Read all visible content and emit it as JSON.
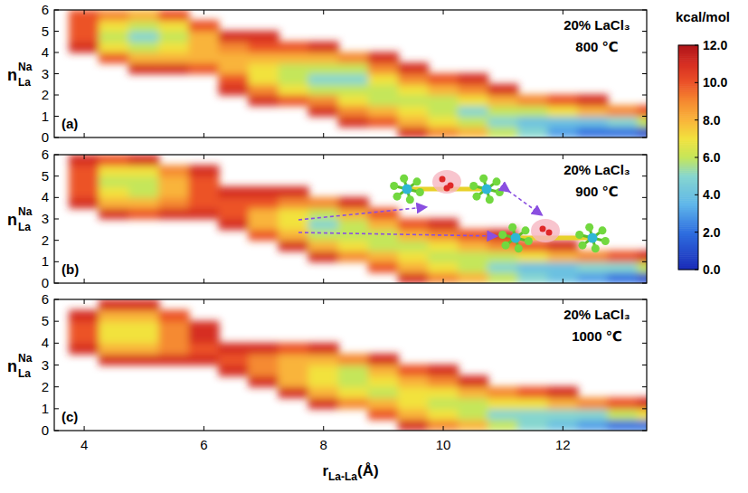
{
  "chart_data": [
    {
      "type": "heatmap",
      "panel_label": "(a)",
      "annotations": [
        "20% LaCl₃",
        "800 ℃"
      ],
      "x": [
        4,
        4.5,
        5,
        5.5,
        6,
        6.5,
        7,
        7.5,
        8,
        8.5,
        9,
        9.5,
        10,
        10.5,
        11,
        11.5,
        12,
        12.5,
        13,
        13.5
      ],
      "y": [
        0.25,
        0.75,
        1.25,
        1.75,
        2.25,
        2.75,
        3.25,
        3.75,
        4.25,
        4.75,
        5.25,
        5.75
      ],
      "cells": [
        [
          null,
          null,
          null,
          null,
          null,
          null,
          null,
          null,
          null,
          null,
          null,
          11,
          9,
          8,
          6,
          5,
          3,
          2,
          2,
          1
        ],
        [
          null,
          null,
          null,
          null,
          null,
          null,
          null,
          null,
          null,
          11,
          10,
          8,
          7,
          6,
          5,
          4,
          4,
          4,
          5,
          6
        ],
        [
          null,
          null,
          null,
          null,
          null,
          null,
          null,
          null,
          11,
          9,
          8,
          7,
          6,
          5,
          6,
          6,
          7,
          8,
          9,
          10
        ],
        [
          null,
          null,
          null,
          null,
          null,
          null,
          11,
          10,
          9,
          7,
          6,
          6,
          6,
          7,
          8,
          9,
          10,
          11,
          null,
          null
        ],
        [
          null,
          null,
          null,
          null,
          null,
          11,
          9,
          7,
          6,
          6,
          6,
          7,
          8,
          9,
          11,
          null,
          null,
          null,
          null,
          null
        ],
        [
          null,
          null,
          null,
          null,
          null,
          10,
          7,
          6,
          5,
          5,
          7,
          9,
          10,
          11,
          null,
          null,
          null,
          null,
          null,
          null
        ],
        [
          null,
          null,
          11,
          11,
          10,
          8,
          7,
          6,
          6,
          6,
          9,
          11,
          null,
          null,
          null,
          null,
          null,
          null,
          null,
          null
        ],
        [
          null,
          10,
          8,
          8,
          8,
          8,
          8,
          8,
          8,
          9,
          11,
          null,
          null,
          null,
          null,
          null,
          null,
          null,
          null,
          null
        ],
        [
          11,
          7,
          6,
          7,
          8,
          9,
          10,
          10,
          11,
          null,
          null,
          null,
          null,
          null,
          null,
          null,
          null,
          null,
          null,
          null
        ],
        [
          10,
          6,
          5,
          6,
          8,
          11,
          11,
          null,
          null,
          null,
          null,
          null,
          null,
          null,
          null,
          null,
          null,
          null,
          null,
          null
        ],
        [
          10,
          7,
          6,
          7,
          10,
          null,
          null,
          null,
          null,
          null,
          null,
          null,
          null,
          null,
          null,
          null,
          null,
          null,
          null,
          null
        ],
        [
          10,
          9,
          8,
          10,
          null,
          null,
          null,
          null,
          null,
          null,
          null,
          null,
          null,
          null,
          null,
          null,
          null,
          null,
          null,
          null
        ]
      ],
      "xlim": [
        3.5,
        13.4
      ],
      "ylim": [
        0,
        6
      ],
      "xticks": [
        4,
        6,
        8,
        10,
        12
      ],
      "yticks": [
        0,
        1,
        2,
        3,
        4,
        5,
        6
      ],
      "tick_labels": "y",
      "ylabel": {
        "main": "n",
        "sup": "Na",
        "sub": "La"
      },
      "colorbar": {
        "label": "kcal/mol",
        "range": [
          0,
          12
        ],
        "ticks": [
          {
            "value": 0,
            "label": "0.0"
          },
          {
            "value": 2,
            "label": "2.0"
          },
          {
            "value": 4,
            "label": "4.0"
          },
          {
            "value": 6,
            "label": "6.0"
          },
          {
            "value": 8,
            "label": "8.0"
          },
          {
            "value": 10,
            "label": "10.0"
          },
          {
            "value": 12,
            "label": "12.0"
          }
        ]
      }
    },
    {
      "type": "heatmap",
      "panel_label": "(b)",
      "annotations": [
        "20% LaCl₃",
        "900 ℃"
      ],
      "x": [
        4,
        4.5,
        5,
        5.5,
        6,
        6.5,
        7,
        7.5,
        8,
        8.5,
        9,
        9.5,
        10,
        10.5,
        11,
        11.5,
        12,
        12.5,
        13,
        13.5
      ],
      "y": [
        0.25,
        0.75,
        1.25,
        1.75,
        2.25,
        2.75,
        3.25,
        3.75,
        4.25,
        4.75,
        5.25,
        5.75
      ],
      "cells": [
        [
          null,
          null,
          null,
          null,
          null,
          null,
          null,
          null,
          null,
          null,
          null,
          11,
          9,
          8,
          6,
          5,
          4,
          3,
          2,
          1
        ],
        [
          null,
          null,
          null,
          null,
          null,
          null,
          null,
          null,
          null,
          null,
          10,
          8,
          7,
          6,
          5,
          4,
          4,
          5,
          5,
          6
        ],
        [
          null,
          null,
          null,
          null,
          null,
          null,
          null,
          null,
          11,
          9,
          8,
          7,
          6,
          6,
          6,
          7,
          8,
          9,
          10,
          11
        ],
        [
          null,
          null,
          null,
          null,
          null,
          null,
          null,
          11,
          8,
          7,
          6,
          6,
          7,
          8,
          9,
          10,
          11,
          null,
          null,
          null
        ],
        [
          null,
          null,
          null,
          null,
          null,
          null,
          10,
          8,
          6,
          6,
          6,
          8,
          9,
          10,
          11,
          null,
          null,
          null,
          null,
          null
        ],
        [
          null,
          null,
          null,
          null,
          null,
          11,
          8,
          7,
          5,
          6,
          8,
          10,
          11,
          null,
          null,
          null,
          null,
          null,
          null,
          null
        ],
        [
          null,
          11,
          10,
          11,
          11,
          10,
          8,
          7,
          6,
          8,
          10,
          null,
          null,
          null,
          null,
          null,
          null,
          null,
          null,
          null
        ],
        [
          11,
          8,
          8,
          9,
          10,
          10,
          10,
          9,
          9,
          11,
          null,
          null,
          null,
          null,
          null,
          null,
          null,
          null,
          null,
          null
        ],
        [
          10,
          7,
          6,
          8,
          10,
          11,
          11,
          11,
          null,
          null,
          null,
          null,
          null,
          null,
          null,
          null,
          null,
          null,
          null,
          null
        ],
        [
          10,
          6,
          6,
          8,
          10,
          null,
          null,
          null,
          null,
          null,
          null,
          null,
          null,
          null,
          null,
          null,
          null,
          null,
          null,
          null
        ],
        [
          10,
          7,
          7,
          9,
          11,
          null,
          null,
          null,
          null,
          null,
          null,
          null,
          null,
          null,
          null,
          null,
          null,
          null,
          null,
          null
        ],
        [
          11,
          10,
          11,
          null,
          null,
          null,
          null,
          null,
          null,
          null,
          null,
          null,
          null,
          null,
          null,
          null,
          null,
          null,
          null,
          null
        ]
      ],
      "xlim": [
        3.5,
        13.4
      ],
      "ylim": [
        0,
        6
      ],
      "xticks": [
        4,
        6,
        8,
        10,
        12
      ],
      "yticks": [
        0,
        1,
        2,
        3,
        4,
        5,
        6
      ],
      "tick_labels": "y",
      "ylabel": {
        "main": "n",
        "sup": "Na",
        "sub": "La"
      }
    },
    {
      "type": "heatmap",
      "panel_label": "(c)",
      "annotations": [
        "20% LaCl₃",
        "1000 ℃"
      ],
      "x": [
        4,
        4.5,
        5,
        5.5,
        6,
        6.5,
        7,
        7.5,
        8,
        8.5,
        9,
        9.5,
        10,
        10.5,
        11,
        11.5,
        12,
        12.5,
        13,
        13.5
      ],
      "y": [
        0.25,
        0.75,
        1.25,
        1.75,
        2.25,
        2.75,
        3.25,
        3.75,
        4.25,
        4.75,
        5.25,
        5.75
      ],
      "cells": [
        [
          null,
          null,
          null,
          null,
          null,
          null,
          null,
          null,
          null,
          null,
          null,
          11,
          9,
          8,
          6,
          5,
          4,
          3,
          2,
          2
        ],
        [
          null,
          null,
          null,
          null,
          null,
          null,
          null,
          null,
          null,
          null,
          10,
          8,
          7,
          6,
          5,
          5,
          5,
          5,
          6,
          7
        ],
        [
          null,
          null,
          null,
          null,
          null,
          null,
          null,
          null,
          11,
          9,
          8,
          7,
          6,
          6,
          7,
          7,
          8,
          9,
          10,
          11
        ],
        [
          null,
          null,
          null,
          null,
          null,
          null,
          null,
          11,
          8,
          7,
          6,
          7,
          7,
          8,
          9,
          10,
          11,
          null,
          null,
          null
        ],
        [
          null,
          null,
          null,
          null,
          null,
          null,
          11,
          8,
          7,
          6,
          7,
          8,
          9,
          11,
          null,
          null,
          null,
          null,
          null,
          null
        ],
        [
          null,
          null,
          null,
          null,
          null,
          11,
          9,
          8,
          7,
          6,
          8,
          10,
          11,
          null,
          null,
          null,
          null,
          null,
          null,
          null
        ],
        [
          null,
          11,
          11,
          11,
          11,
          10,
          9,
          8,
          8,
          9,
          11,
          null,
          null,
          null,
          null,
          null,
          null,
          null,
          null,
          null
        ],
        [
          11,
          8,
          8,
          9,
          10,
          11,
          11,
          10,
          11,
          null,
          null,
          null,
          null,
          null,
          null,
          null,
          null,
          null,
          null,
          null
        ],
        [
          10,
          7,
          7,
          9,
          11,
          null,
          null,
          null,
          null,
          null,
          null,
          null,
          null,
          null,
          null,
          null,
          null,
          null,
          null,
          null
        ],
        [
          10,
          7,
          7,
          9,
          11,
          null,
          null,
          null,
          null,
          null,
          null,
          null,
          null,
          null,
          null,
          null,
          null,
          null,
          null,
          null
        ],
        [
          11,
          8,
          8,
          10,
          null,
          null,
          null,
          null,
          null,
          null,
          null,
          null,
          null,
          null,
          null,
          null,
          null,
          null,
          null,
          null
        ],
        [
          null,
          11,
          11,
          null,
          null,
          null,
          null,
          null,
          null,
          null,
          null,
          null,
          null,
          null,
          null,
          null,
          null,
          null,
          null,
          null
        ]
      ],
      "xlim": [
        3.5,
        13.4
      ],
      "ylim": [
        0,
        6
      ],
      "xticks": [
        4,
        6,
        8,
        10,
        12
      ],
      "yticks": [
        0,
        1,
        2,
        3,
        4,
        5,
        6
      ],
      "ylabel": {
        "main": "n",
        "sup": "Na",
        "sub": "La"
      },
      "xlabel": {
        "main": "r",
        "sub": "La-La",
        "tail": "(Å)"
      }
    }
  ]
}
